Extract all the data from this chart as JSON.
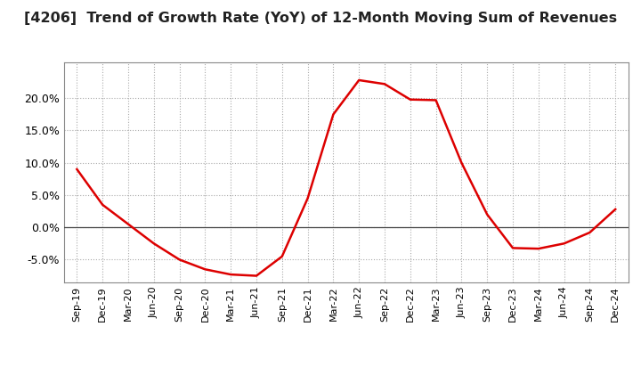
{
  "title": "[4206]  Trend of Growth Rate (YoY) of 12-Month Moving Sum of Revenues",
  "title_fontsize": 11.5,
  "title_color": "#222222",
  "line_color": "#DD0000",
  "line_width": 1.8,
  "background_color": "#ffffff",
  "plot_bg_color": "#ffffff",
  "grid_color": "#aaaaaa",
  "ylim": [
    -0.085,
    0.255
  ],
  "yticks": [
    -0.05,
    0.0,
    0.05,
    0.1,
    0.15,
    0.2
  ],
  "x_labels": [
    "Sep-19",
    "Dec-19",
    "Mar-20",
    "Jun-20",
    "Sep-20",
    "Dec-20",
    "Mar-21",
    "Jun-21",
    "Sep-21",
    "Dec-21",
    "Mar-22",
    "Jun-22",
    "Sep-22",
    "Dec-22",
    "Mar-23",
    "Jun-23",
    "Sep-23",
    "Dec-23",
    "Mar-24",
    "Jun-24",
    "Sep-24",
    "Dec-24"
  ],
  "y_values": [
    0.09,
    0.035,
    0.005,
    -0.025,
    -0.05,
    -0.065,
    -0.073,
    -0.075,
    -0.045,
    0.045,
    0.175,
    0.228,
    0.222,
    0.198,
    0.197,
    0.1,
    0.02,
    -0.032,
    -0.033,
    -0.025,
    -0.008,
    0.028
  ]
}
